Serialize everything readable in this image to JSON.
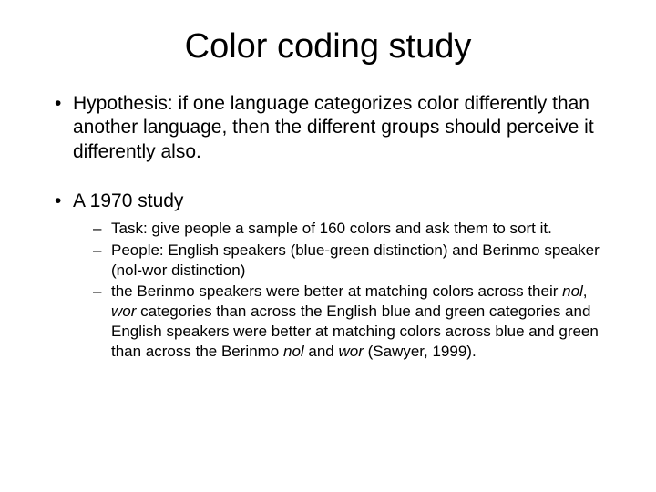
{
  "title": "Color coding study",
  "bullets": [
    {
      "text": "Hypothesis: if one language categorizes color differently than another language, then the different groups should perceive it differently also."
    },
    {
      "text": "A 1970 study",
      "sub": [
        "Task: give people a sample of 160 colors and ask them to sort it.",
        "People: English speakers (blue-green distinction) and Berinmo speaker (nol-wor distinction)",
        "the Berinmo speakers were better at matching colors across their <i>nol</i>, <i>wor</i> categories than across the English blue and green categories and English speakers were better at matching colors across blue and green than across the Berinmo <i>nol</i> and <i>wor</i> (Sawyer, 1999)."
      ]
    }
  ],
  "colors": {
    "background": "#ffffff",
    "text": "#000000"
  },
  "typography": {
    "title_fontsize": 38,
    "body_fontsize": 21,
    "sub_fontsize": 17,
    "font_family": "Arial"
  }
}
